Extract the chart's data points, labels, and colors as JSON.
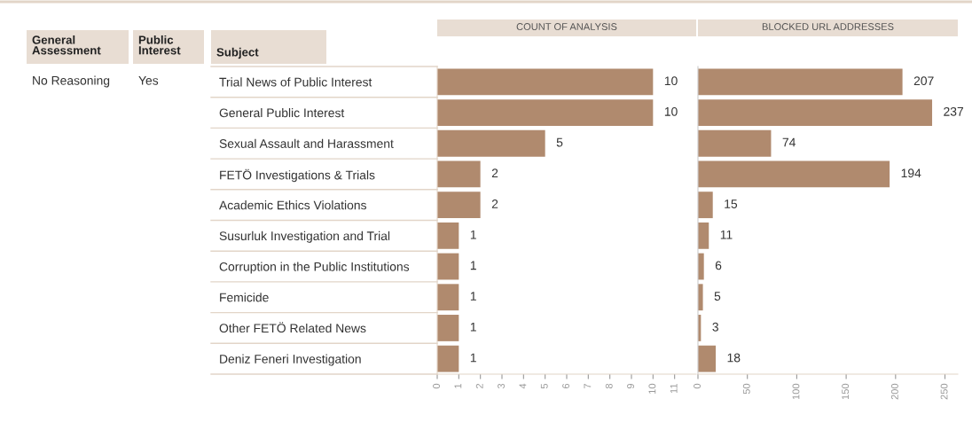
{
  "chart_data": [
    {
      "type": "bar",
      "orientation": "horizontal",
      "title": "COUNT OF ANALYSIS",
      "categories": [
        "Trial News of Public Interest",
        "General Public Interest",
        "Sexual Assault and Harassment",
        "FETÖ Investigations & Trials",
        "Academic Ethics Violations",
        "Susurluk Investigation and Trial",
        "Corruption in the Public Institutions",
        "Femicide",
        "Other FETÖ Related News",
        "Deniz Feneri Investigation"
      ],
      "values": [
        10,
        10,
        5,
        2,
        2,
        1,
        1,
        1,
        1,
        1
      ],
      "color": "#b08a6e",
      "data_labels": true,
      "grid": false,
      "xlim": [
        0,
        12
      ],
      "xticks": [
        0,
        1,
        2,
        3,
        4,
        5,
        6,
        7,
        8,
        9,
        10,
        11
      ],
      "annotations": [
        "General Assessment",
        "Public Interest",
        "Subject",
        "No Reasoning",
        "Yes"
      ]
    },
    {
      "type": "bar",
      "orientation": "horizontal",
      "title": "BLOCKED URL ADDRESSES",
      "categories": [
        null,
        null,
        null,
        null,
        null,
        null,
        null,
        null,
        null,
        null
      ],
      "values": [
        207,
        237,
        74,
        194,
        15,
        11,
        6,
        5,
        3,
        18
      ],
      "color": "#b08a6e",
      "data_labels": true,
      "grid": false,
      "tick_labels": "x",
      "xlim": [
        0,
        263
      ],
      "xticks": [
        0,
        50,
        100,
        150,
        200,
        250
      ]
    }
  ]
}
